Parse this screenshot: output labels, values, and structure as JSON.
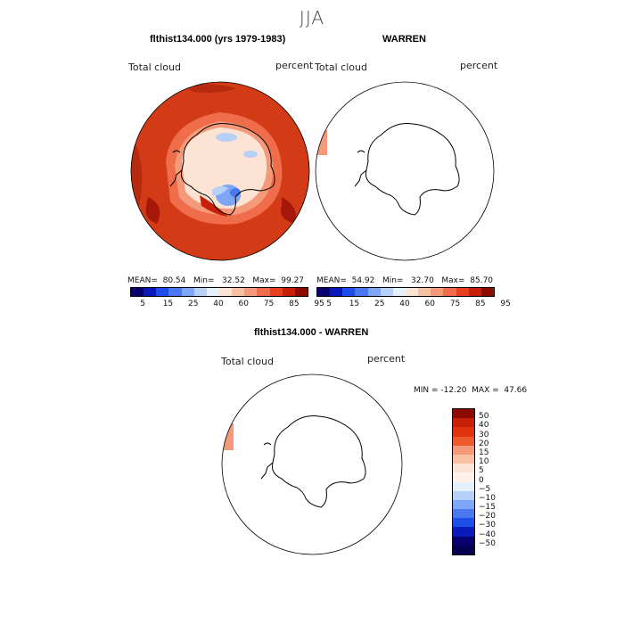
{
  "figure": {
    "title": "JJA"
  },
  "panels": {
    "left": {
      "title": "flthist134.000 (yrs 1979-1983)",
      "label_left": "Total cloud",
      "label_right": "percent",
      "stats": "MEAN=  80.54   Min=   32.52   Max=  99.27"
    },
    "right": {
      "title": "WARREN",
      "label_left": "Total cloud",
      "label_right": "percent",
      "stats": "MEAN=  54.92   Min=   32.70   Max=  85.70"
    },
    "diff": {
      "title": "flthist134.000 - WARREN",
      "label_left": "Total cloud",
      "label_right": "percent",
      "stats": "MIN = -12.20  MAX =  47.66"
    }
  },
  "colorbar_abs": {
    "ticks": [
      "5",
      "15",
      "25",
      "40",
      "60",
      "75",
      "85",
      "95"
    ],
    "colors": [
      "#08006e",
      "#0a1ab8",
      "#1e4ee8",
      "#4a78f0",
      "#7ea6f6",
      "#b7d0f8",
      "#e6f0fb",
      "#fde3d3",
      "#f8c1a4",
      "#f4997a",
      "#ef6d4a",
      "#e64120",
      "#c62008",
      "#8c0a00"
    ]
  },
  "colorbar_diff": {
    "ticks": [
      "50",
      "40",
      "30",
      "20",
      "15",
      "10",
      "5",
      "0",
      "−5",
      "−10",
      "−15",
      "−20",
      "−30",
      "−40",
      "−50"
    ],
    "colors": [
      "#8c0a00",
      "#c62008",
      "#e0320e",
      "#ef5a2c",
      "#f4997a",
      "#f8c1a4",
      "#fde3d3",
      "#fdf1ea",
      "#e6f0fb",
      "#b7d0f8",
      "#7ea6f6",
      "#4a78f0",
      "#1e4ee8",
      "#0a1ab8",
      "#08006e",
      "#050050"
    ]
  }
}
